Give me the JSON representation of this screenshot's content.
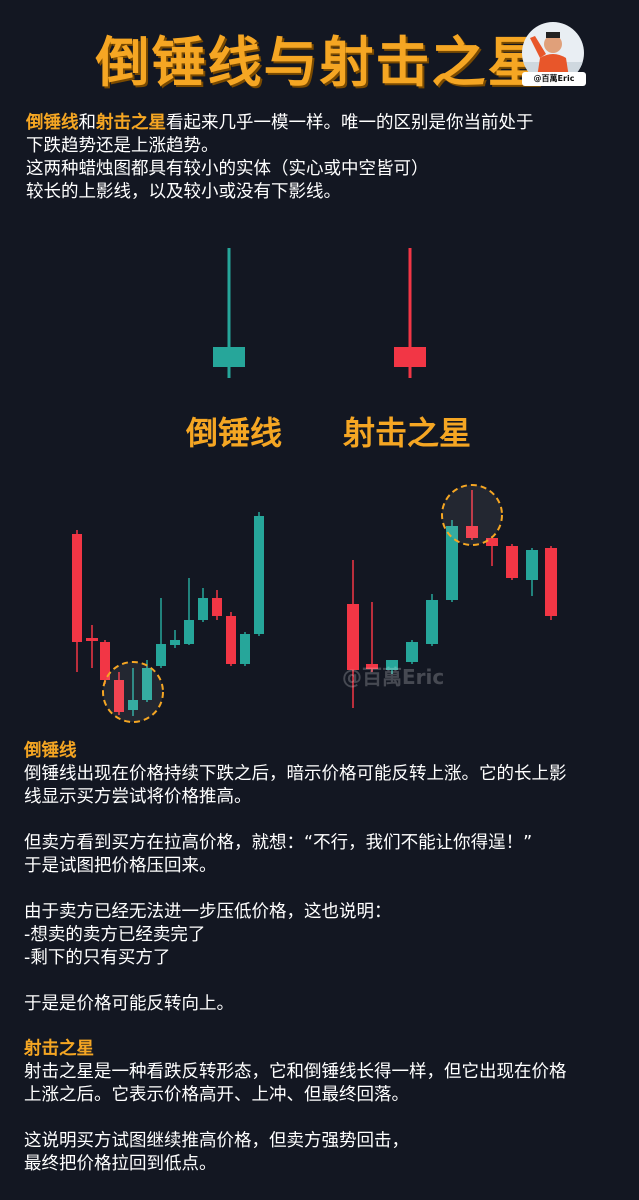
{
  "title": "倒锤线与射击之星",
  "avatar": {
    "tag": "@百萬Eric"
  },
  "intro": {
    "hl1": "倒锤线",
    "and": "和",
    "hl2": "射击之星",
    "rest1": "看起来几乎一模一样。唯一的区别是你当前处于",
    "line2": "下跌趋势还是上涨趋势。",
    "line3": "这两种蜡烛图都具有较小的实体（实心或中空皆可）",
    "line4": "较长的上影线，以及较小或没有下影线。"
  },
  "labels": {
    "inverted_hammer": "倒锤线",
    "shooting_star": "射击之星"
  },
  "watermark": "@百萬Eric",
  "colors": {
    "accent": "#f5a623",
    "bull": "#26a69a",
    "bear": "#f23645",
    "bg": "#131722"
  },
  "section1": {
    "heading": "倒锤线",
    "p1": [
      "倒锤线出现在价格持续下跌之后，暗示价格可能反转上涨。它的长上影",
      "线显示买方尝试将价格推高。"
    ],
    "p2": [
      "但卖方看到买方在拉高价格，就想：“不行，我们不能让你得逞！”",
      "于是试图把价格压回来。"
    ],
    "p3": [
      "由于卖方已经无法进一步压低价格，这也说明：",
      "-想卖的卖方已经卖完了",
      "-剩下的只有买方了"
    ],
    "p4": [
      "于是是价格可能反转向上。"
    ]
  },
  "section2": {
    "heading": "射击之星",
    "p1": [
      "射击之星是一种看跌反转形态，它和倒锤线长得一样，但它出现在价格",
      "上涨之后。它表示价格高开、上冲、但最终回落。"
    ],
    "p2": [
      "这说明买方试图继续推高价格，但卖方强势回击，",
      "最终把价格拉回到低点。"
    ]
  }
}
